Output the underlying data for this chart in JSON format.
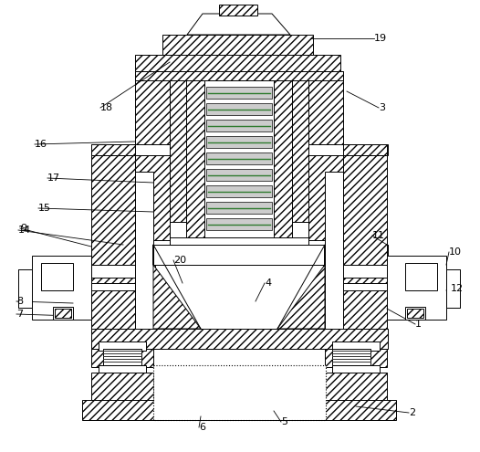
{
  "background_color": "#ffffff",
  "line_color": "#000000",
  "label_color": "#000000",
  "fig_width": 5.26,
  "fig_height": 4.95,
  "dpi": 100,
  "hatch_dense": "////",
  "hatch_horiz": "----"
}
